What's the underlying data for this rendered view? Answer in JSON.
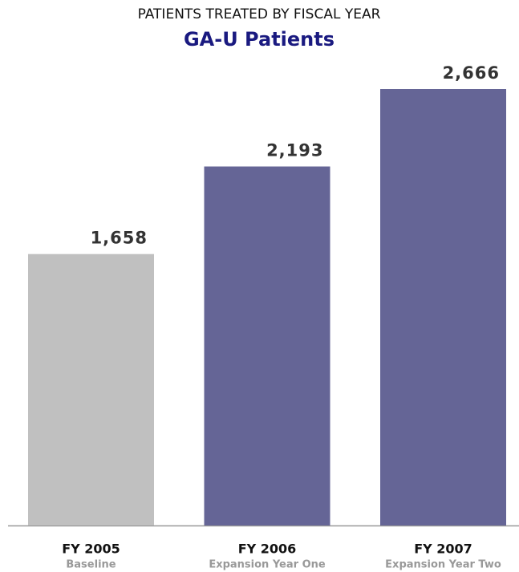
{
  "chart_data": {
    "type": "bar",
    "title": "PATIENTS TREATED BY FISCAL YEAR",
    "subtitle": "GA-U Patients",
    "categories": [
      "FY 2005",
      "FY 2006",
      "FY 2007"
    ],
    "category_notes": [
      "Baseline",
      "Expansion Year One",
      "Expansion Year Two"
    ],
    "values": [
      1658,
      2193,
      2666
    ],
    "value_labels": [
      "1,658",
      "2,193",
      "2,666"
    ],
    "colors": [
      "#c0c0c0",
      "#656596",
      "#656596"
    ]
  }
}
